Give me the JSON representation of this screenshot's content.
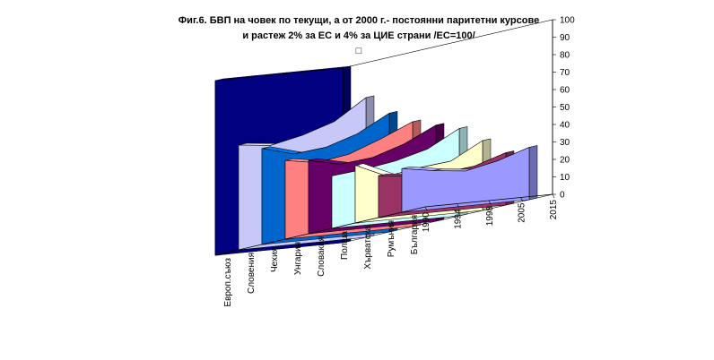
{
  "title": {
    "line1": "Фиг.6. БВП на човек по текущи, а от 2000 г.- постоянни паритетни курсове",
    "line2": "и  растеж 2% за ЕС и 4% за ЦИЕ страни /ЕС=100/",
    "line3": "□"
  },
  "chart_data": {
    "type": "area",
    "view": "3d",
    "x": [
      "1990",
      "1994",
      "1998",
      "2005",
      "2015"
    ],
    "ylim": [
      0,
      100
    ],
    "yticks": [
      0,
      10,
      20,
      30,
      40,
      50,
      60,
      70,
      80,
      90,
      100
    ],
    "grid": false,
    "legend": "none",
    "series": [
      {
        "name": "Европ.съюз",
        "color": "#000080",
        "values": [
          100,
          100,
          100,
          100,
          100
        ]
      },
      {
        "name": "Словения",
        "color": "#c8c8f8",
        "values": [
          60,
          58,
          62,
          68,
          80
        ]
      },
      {
        "name": "Чехия",
        "color": "#0066cc",
        "values": [
          55,
          50,
          52,
          58,
          68
        ]
      },
      {
        "name": "Унгария",
        "color": "#ff8080",
        "values": [
          45,
          42,
          45,
          52,
          60
        ]
      },
      {
        "name": "Словакия",
        "color": "#660066",
        "values": [
          42,
          38,
          40,
          46,
          55
        ]
      },
      {
        "name": "Полша",
        "color": "#ccffff",
        "values": [
          30,
          32,
          35,
          40,
          50
        ]
      },
      {
        "name": "Хърватска",
        "color": "#ffffcc",
        "values": [
          33,
          25,
          28,
          30,
          40
        ]
      },
      {
        "name": "Румъния",
        "color": "#993366",
        "values": [
          24,
          22,
          22,
          24,
          30
        ]
      },
      {
        "name": "България",
        "color": "#9999ff",
        "values": [
          25,
          22,
          20,
          24,
          30
        ]
      }
    ]
  }
}
